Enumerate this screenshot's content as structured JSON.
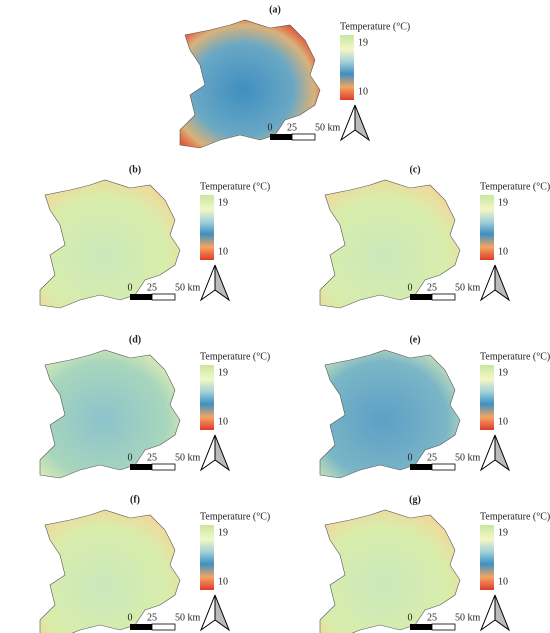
{
  "panels": [
    {
      "label": "(a)",
      "legend_title": "Temperature (°C)",
      "legend_max": "19",
      "legend_min": "10",
      "scale": [
        "0",
        "25",
        "50 km"
      ]
    },
    {
      "label": "(b)",
      "legend_title": "Temperature (°C)",
      "legend_max": "19",
      "legend_min": "10",
      "scale": [
        "0",
        "25",
        "50 km"
      ]
    },
    {
      "label": "(c)",
      "legend_title": "Temperature (°C)",
      "legend_max": "19",
      "legend_min": "10",
      "scale": [
        "0",
        "25",
        "50 km"
      ]
    },
    {
      "label": "(d)",
      "legend_title": "Temperature (°C)",
      "legend_max": "19",
      "legend_min": "10",
      "scale": [
        "0",
        "25",
        "50 km"
      ]
    },
    {
      "label": "(e)",
      "legend_title": "Temperature (°C)",
      "legend_max": "19",
      "legend_min": "10",
      "scale": [
        "0",
        "25",
        "50 km"
      ]
    },
    {
      "label": "(f)",
      "legend_title": "Temperature (°C)",
      "legend_max": "19",
      "legend_min": "10",
      "scale": [
        "0",
        "25",
        "50 km"
      ]
    },
    {
      "label": "(g)",
      "legend_title": "Temperature (°C)",
      "legend_max": "19",
      "legend_min": "10",
      "scale": [
        "0",
        "25",
        "50 km"
      ]
    }
  ]
}
